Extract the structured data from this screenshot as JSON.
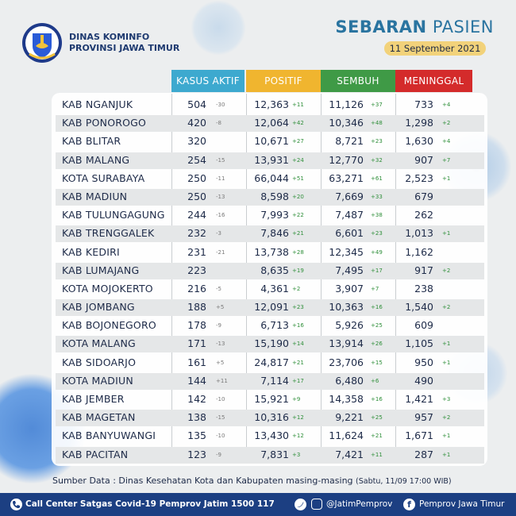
{
  "header": {
    "org_line1": "DINAS KOMINFO",
    "org_line2": "PROVINSI JAWA TIMUR",
    "title_bold": "SEBARAN",
    "title_rest": "PASIEN",
    "date": "11 September 2021"
  },
  "columns": {
    "aktif": "KASUS AKTIF",
    "positif": "POSITIF",
    "sembuh": "SEMBUH",
    "meninggal": "MENINGGAL"
  },
  "colors": {
    "aktif": "#3da9cf",
    "positif": "#f0b52f",
    "sembuh": "#3f9a46",
    "meninggal": "#d42b2b",
    "footer": "#1c3f82"
  },
  "rows": [
    {
      "name": "KAB NGANJUK",
      "aktif": "504",
      "aktif_d": "-30",
      "positif": "12,363",
      "positif_d": "+11",
      "sembuh": "11,126",
      "sembuh_d": "+37",
      "meninggal": "733",
      "meninggal_d": "+4"
    },
    {
      "name": "KAB PONOROGO",
      "aktif": "420",
      "aktif_d": "-8",
      "positif": "12,064",
      "positif_d": "+42",
      "sembuh": "10,346",
      "sembuh_d": "+48",
      "meninggal": "1,298",
      "meninggal_d": "+2"
    },
    {
      "name": "KAB BLITAR",
      "aktif": "320",
      "aktif_d": "",
      "positif": "10,671",
      "positif_d": "+27",
      "sembuh": "8,721",
      "sembuh_d": "+23",
      "meninggal": "1,630",
      "meninggal_d": "+4"
    },
    {
      "name": "KAB MALANG",
      "aktif": "254",
      "aktif_d": "-15",
      "positif": "13,931",
      "positif_d": "+24",
      "sembuh": "12,770",
      "sembuh_d": "+32",
      "meninggal": "907",
      "meninggal_d": "+7"
    },
    {
      "name": "KOTA SURABAYA",
      "aktif": "250",
      "aktif_d": "-11",
      "positif": "66,044",
      "positif_d": "+51",
      "sembuh": "63,271",
      "sembuh_d": "+61",
      "meninggal": "2,523",
      "meninggal_d": "+1"
    },
    {
      "name": "KAB MADIUN",
      "aktif": "250",
      "aktif_d": "-13",
      "positif": "8,598",
      "positif_d": "+20",
      "sembuh": "7,669",
      "sembuh_d": "+33",
      "meninggal": "679",
      "meninggal_d": ""
    },
    {
      "name": "KAB TULUNGAGUNG",
      "aktif": "244",
      "aktif_d": "-16",
      "positif": "7,993",
      "positif_d": "+22",
      "sembuh": "7,487",
      "sembuh_d": "+38",
      "meninggal": "262",
      "meninggal_d": ""
    },
    {
      "name": "KAB TRENGGALEK",
      "aktif": "232",
      "aktif_d": "-3",
      "positif": "7,846",
      "positif_d": "+21",
      "sembuh": "6,601",
      "sembuh_d": "+23",
      "meninggal": "1,013",
      "meninggal_d": "+1"
    },
    {
      "name": "KAB KEDIRI",
      "aktif": "231",
      "aktif_d": "-21",
      "positif": "13,738",
      "positif_d": "+28",
      "sembuh": "12,345",
      "sembuh_d": "+49",
      "meninggal": "1,162",
      "meninggal_d": ""
    },
    {
      "name": "KAB LUMAJANG",
      "aktif": "223",
      "aktif_d": "",
      "positif": "8,635",
      "positif_d": "+19",
      "sembuh": "7,495",
      "sembuh_d": "+17",
      "meninggal": "917",
      "meninggal_d": "+2"
    },
    {
      "name": "KOTA MOJOKERTO",
      "aktif": "216",
      "aktif_d": "-5",
      "positif": "4,361",
      "positif_d": "+2",
      "sembuh": "3,907",
      "sembuh_d": "+7",
      "meninggal": "238",
      "meninggal_d": ""
    },
    {
      "name": "KAB JOMBANG",
      "aktif": "188",
      "aktif_d": "+5",
      "positif": "12,091",
      "positif_d": "+23",
      "sembuh": "10,363",
      "sembuh_d": "+16",
      "meninggal": "1,540",
      "meninggal_d": "+2"
    },
    {
      "name": "KAB BOJONEGORO",
      "aktif": "178",
      "aktif_d": "-9",
      "positif": "6,713",
      "positif_d": "+16",
      "sembuh": "5,926",
      "sembuh_d": "+25",
      "meninggal": "609",
      "meninggal_d": ""
    },
    {
      "name": "KOTA MALANG",
      "aktif": "171",
      "aktif_d": "-13",
      "positif": "15,190",
      "positif_d": "+14",
      "sembuh": "13,914",
      "sembuh_d": "+26",
      "meninggal": "1,105",
      "meninggal_d": "+1"
    },
    {
      "name": "KAB SIDOARJO",
      "aktif": "161",
      "aktif_d": "+5",
      "positif": "24,817",
      "positif_d": "+21",
      "sembuh": "23,706",
      "sembuh_d": "+15",
      "meninggal": "950",
      "meninggal_d": "+1"
    },
    {
      "name": "KOTA MADIUN",
      "aktif": "144",
      "aktif_d": "+11",
      "positif": "7,114",
      "positif_d": "+17",
      "sembuh": "6,480",
      "sembuh_d": "+6",
      "meninggal": "490",
      "meninggal_d": ""
    },
    {
      "name": "KAB JEMBER",
      "aktif": "142",
      "aktif_d": "-10",
      "positif": "15,921",
      "positif_d": "+9",
      "sembuh": "14,358",
      "sembuh_d": "+16",
      "meninggal": "1,421",
      "meninggal_d": "+3"
    },
    {
      "name": "KAB MAGETAN",
      "aktif": "138",
      "aktif_d": "-15",
      "positif": "10,316",
      "positif_d": "+12",
      "sembuh": "9,221",
      "sembuh_d": "+25",
      "meninggal": "957",
      "meninggal_d": "+2"
    },
    {
      "name": "KAB BANYUWANGI",
      "aktif": "135",
      "aktif_d": "-10",
      "positif": "13,430",
      "positif_d": "+12",
      "sembuh": "11,624",
      "sembuh_d": "+21",
      "meninggal": "1,671",
      "meninggal_d": "+1"
    },
    {
      "name": "KAB PACITAN",
      "aktif": "123",
      "aktif_d": "-9",
      "positif": "7,831",
      "positif_d": "+3",
      "sembuh": "7,421",
      "sembuh_d": "+11",
      "meninggal": "287",
      "meninggal_d": "+1"
    }
  ],
  "source": {
    "main": "Sumber Data : Dinas Kesehatan Kota dan Kabupaten masing-masing",
    "time": "(Sabtu, 11/09 17:00 WIB)"
  },
  "footer": {
    "call_center": "Call Center Satgas Covid-19 Pemprov Jatim 1500 117",
    "twitter_ig": "@JatimPemprov",
    "facebook": "Pemprov Jawa Timur"
  },
  "icons": {
    "logo": "east-java-crest-icon",
    "call": "phone-icon",
    "twitter": "twitter-icon",
    "instagram": "instagram-icon",
    "facebook": "facebook-icon"
  }
}
